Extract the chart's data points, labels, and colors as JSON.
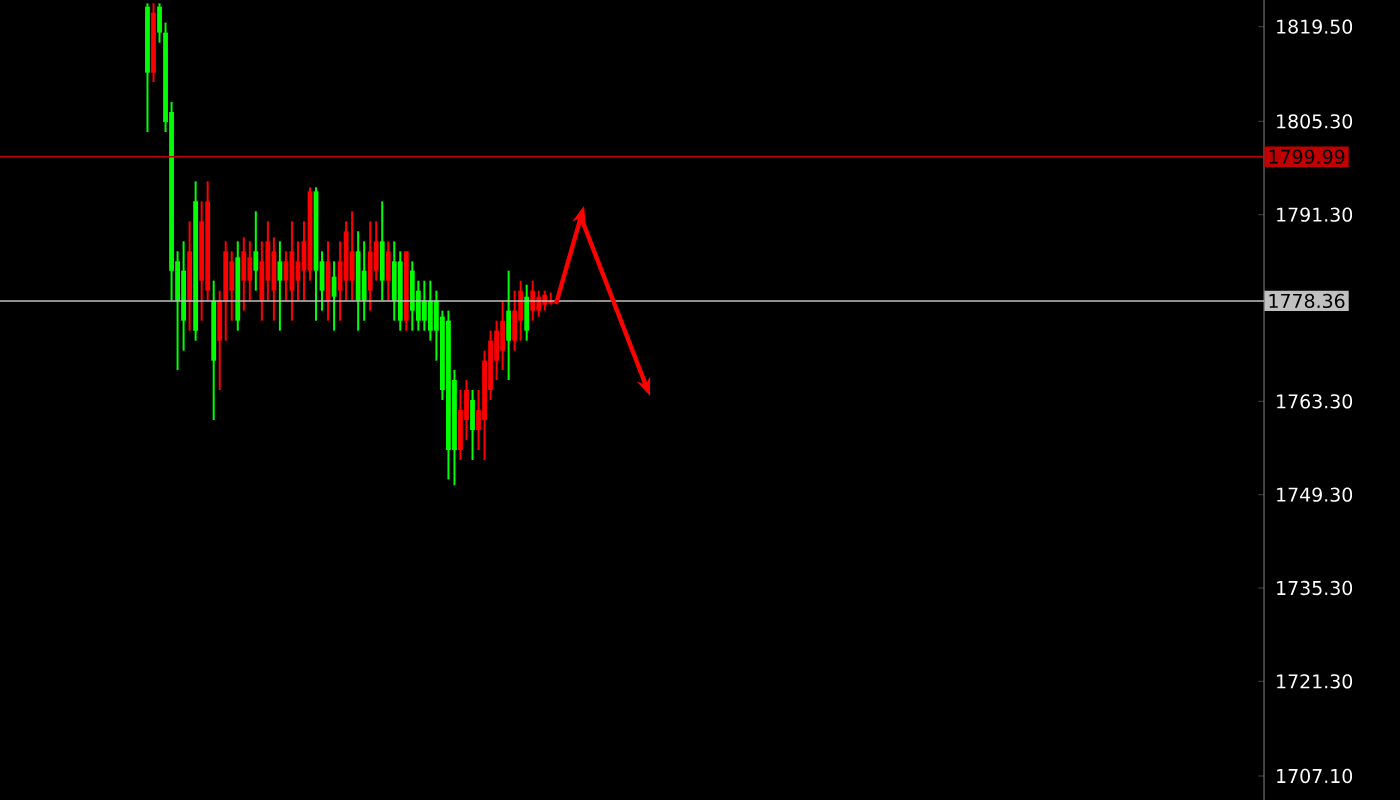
{
  "chart_data": {
    "type": "candlestick",
    "categories": [
      null,
      null,
      null,
      null,
      null,
      null,
      null,
      null,
      null,
      null,
      null,
      null,
      null,
      null,
      null,
      null,
      null,
      null,
      null,
      null,
      null,
      null,
      null,
      null,
      null,
      null,
      null,
      null,
      null,
      null,
      null,
      null,
      null,
      null,
      null,
      null,
      null,
      null,
      null,
      null,
      null,
      null,
      null,
      null,
      null,
      null,
      null,
      null,
      null,
      null,
      null,
      null,
      null,
      null,
      null,
      null,
      null,
      null,
      null,
      null,
      null,
      null,
      null,
      null,
      null,
      null,
      null,
      null,
      null,
      null,
      null,
      null,
      null,
      null,
      null,
      null,
      null,
      null,
      null,
      null,
      null,
      null,
      null,
      null,
      null,
      null,
      null,
      null,
      null,
      null,
      null,
      null,
      null,
      null,
      null,
      null,
      null,
      null,
      null,
      null,
      null,
      null,
      null,
      null,
      null,
      null,
      null,
      null,
      null,
      null,
      null,
      null,
      null,
      null,
      null,
      null,
      null,
      null,
      null,
      null,
      null,
      null,
      null,
      null,
      null,
      null,
      null,
      null,
      null,
      null,
      null,
      null,
      null,
      null,
      null,
      null,
      null,
      null,
      null,
      null,
      null,
      null,
      null,
      null,
      null,
      null,
      null,
      null,
      null,
      null,
      null,
      null,
      null,
      null,
      null,
      null,
      null,
      null,
      null,
      null,
      null,
      null,
      null,
      null,
      null,
      null,
      null,
      null,
      null,
      null,
      null,
      null,
      null,
      null,
      null,
      null,
      null,
      null,
      null,
      null,
      null,
      null,
      null,
      null,
      null,
      null,
      null,
      null,
      null,
      null,
      null,
      null,
      null,
      null,
      null,
      null,
      null,
      null,
      null,
      null,
      null,
      null,
      null,
      null,
      null,
      null,
      null,
      null,
      null,
      null
    ],
    "ohlc": [
      null,
      null,
      null,
      null,
      null,
      null,
      null,
      null,
      null,
      null,
      null,
      null,
      null,
      null,
      null,
      null,
      null,
      null,
      null,
      null,
      null,
      null,
      null,
      null,
      [
        1822.5,
        1823.0,
        1803.7,
        1812.6
      ],
      [
        1812.6,
        1823.0,
        1811.2,
        1821.6
      ],
      [
        1822.5,
        1823.0,
        1817.1,
        1818.6
      ],
      [
        1818.6,
        1820.1,
        1803.7,
        1805.2
      ],
      [
        1806.7,
        1808.2,
        1778.4,
        1782.9
      ],
      [
        1784.3,
        1785.8,
        1768.0,
        1778.4
      ],
      [
        1782.9,
        1787.3,
        1770.9,
        1775.4
      ],
      [
        1778.4,
        1790.3,
        1773.9,
        1785.8
      ],
      [
        1793.3,
        1796.3,
        1772.4,
        1773.9
      ],
      [
        1781.4,
        1793.3,
        1775.4,
        1790.3
      ],
      [
        1779.9,
        1796.3,
        1778.4,
        1793.3
      ],
      [
        1778.4,
        1781.4,
        1760.5,
        1769.4
      ],
      [
        1772.4,
        1779.9,
        1765.0,
        1778.4
      ],
      [
        1778.4,
        1787.3,
        1772.4,
        1785.8
      ],
      [
        1779.9,
        1785.8,
        1775.4,
        1784.3
      ],
      [
        1784.9,
        1787.3,
        1773.9,
        1775.4
      ],
      [
        1781.4,
        1787.9,
        1776.9,
        1785.8
      ],
      [
        1781.4,
        1787.3,
        1778.4,
        1784.9
      ],
      [
        1785.8,
        1791.8,
        1779.9,
        1782.9
      ],
      [
        1778.4,
        1787.3,
        1775.4,
        1784.3
      ],
      [
        1781.4,
        1790.3,
        1778.4,
        1787.3
      ],
      [
        1779.9,
        1787.9,
        1775.4,
        1785.8
      ],
      [
        1784.3,
        1787.3,
        1773.9,
        1781.4
      ],
      [
        1781.4,
        1785.8,
        1778.4,
        1784.3
      ],
      [
        1779.9,
        1790.3,
        1775.4,
        1785.8
      ],
      [
        1781.4,
        1787.3,
        1778.4,
        1784.3
      ],
      [
        1782.9,
        1790.3,
        1778.4,
        1787.3
      ],
      [
        1782.9,
        1795.4,
        1781.4,
        1794.8
      ],
      [
        1794.8,
        1795.4,
        1775.4,
        1782.9
      ],
      [
        1784.3,
        1785.8,
        1776.9,
        1779.9
      ],
      [
        1778.4,
        1787.3,
        1775.4,
        1784.3
      ],
      [
        1782.0,
        1784.3,
        1773.9,
        1779.0
      ],
      [
        1779.9,
        1787.3,
        1775.4,
        1784.3
      ],
      [
        1781.4,
        1790.3,
        1778.4,
        1788.8
      ],
      [
        1781.4,
        1791.8,
        1778.4,
        1785.8
      ],
      [
        1785.8,
        1788.8,
        1773.9,
        1778.4
      ],
      [
        1782.9,
        1787.3,
        1775.4,
        1778.4
      ],
      [
        1779.9,
        1790.3,
        1776.9,
        1785.8
      ],
      [
        1782.9,
        1790.3,
        1781.4,
        1787.3
      ],
      [
        1787.3,
        1793.3,
        1778.4,
        1781.4
      ],
      [
        1781.4,
        1787.3,
        1778.4,
        1785.8
      ],
      [
        1784.3,
        1787.3,
        1775.4,
        1778.4
      ],
      [
        1784.3,
        1785.8,
        1773.9,
        1775.4
      ],
      [
        1775.4,
        1785.8,
        1773.9,
        1785.8
      ],
      [
        1782.9,
        1784.3,
        1773.9,
        1776.9
      ],
      [
        1779.9,
        1781.4,
        1773.9,
        1775.4
      ],
      [
        1778.4,
        1781.4,
        1773.9,
        1775.4
      ],
      [
        1778.4,
        1781.4,
        1772.4,
        1773.9
      ],
      [
        1778.4,
        1779.9,
        1769.4,
        1773.9
      ],
      [
        1776.0,
        1776.9,
        1763.5,
        1765.0
      ],
      [
        1775.4,
        1776.9,
        1751.6,
        1756.0
      ],
      [
        1766.5,
        1768.0,
        1750.7,
        1756.0
      ],
      [
        1756.0,
        1765.0,
        1754.5,
        1762.0
      ],
      [
        1760.5,
        1766.5,
        1757.5,
        1765.0
      ],
      [
        1763.5,
        1765.0,
        1754.5,
        1759.0
      ],
      [
        1759.0,
        1765.0,
        1756.0,
        1762.0
      ],
      [
        1760.5,
        1770.9,
        1754.5,
        1769.4
      ],
      [
        1765.0,
        1773.9,
        1763.5,
        1772.4
      ],
      [
        1769.4,
        1775.4,
        1766.5,
        1773.9
      ],
      [
        1770.9,
        1778.4,
        1768.0,
        1775.4
      ],
      [
        1776.9,
        1782.9,
        1766.5,
        1772.4
      ],
      [
        1772.4,
        1779.9,
        1770.9,
        1776.9
      ],
      [
        1775.4,
        1781.4,
        1772.4,
        1779.9
      ],
      [
        1779.0,
        1780.8,
        1772.4,
        1773.9
      ],
      [
        1776.9,
        1781.4,
        1775.4,
        1779.9
      ],
      [
        1776.9,
        1779.9,
        1776.0,
        1779.0
      ],
      [
        1777.8,
        1779.9,
        1776.9,
        1779.3
      ],
      [
        1778.0,
        1779.6,
        1777.8,
        1778.4
      ],
      null,
      null,
      null,
      null,
      null,
      null,
      null,
      null,
      null,
      null,
      null,
      null,
      null,
      null,
      null,
      null,
      null,
      null,
      null,
      null,
      null,
      null,
      null,
      null,
      null,
      null,
      null,
      null,
      null,
      null,
      null,
      null,
      null,
      null,
      null,
      null,
      null,
      null,
      null,
      null,
      null,
      null,
      null,
      null,
      null,
      null,
      null,
      null,
      null,
      null,
      null,
      null,
      null,
      null,
      null,
      null,
      null,
      null,
      null,
      null,
      null,
      null,
      null,
      null,
      null,
      null,
      null,
      null,
      null,
      null,
      null,
      null,
      null,
      null,
      null,
      null,
      null,
      null,
      null,
      null,
      null,
      null,
      null,
      null,
      null,
      null,
      null,
      null,
      null,
      null,
      null,
      null,
      null,
      null,
      null,
      null,
      null,
      null,
      null,
      null,
      null,
      null,
      null,
      null,
      null,
      null,
      null,
      null,
      null,
      null,
      null,
      null,
      null,
      null,
      null,
      null,
      null,
      null
    ],
    "colors": [
      null,
      null,
      null,
      null,
      null,
      null,
      null,
      null,
      null,
      null,
      null,
      null,
      null,
      null,
      null,
      null,
      null,
      null,
      null,
      null,
      null,
      null,
      null,
      null,
      "#00ff00",
      "#ff0000",
      "#00ff00",
      "#00ff00",
      "#00ff00",
      "#00ff00",
      "#00ff00",
      "#ff0000",
      "#00ff00",
      "#ff0000",
      "#ff0000",
      "#00ff00",
      "#ff0000",
      "#ff0000",
      "#ff0000",
      "#00ff00",
      "#ff0000",
      "#ff0000",
      "#00ff00",
      "#ff0000",
      "#ff0000",
      "#ff0000",
      "#00ff00",
      "#ff0000",
      "#ff0000",
      "#ff0000",
      "#ff0000",
      "#ff0000",
      "#00ff00",
      "#00ff00",
      "#ff0000",
      "#00ff00",
      "#ff0000",
      "#ff0000",
      "#ff0000",
      "#00ff00",
      "#00ff00",
      "#ff0000",
      "#ff0000",
      "#00ff00",
      "#ff0000",
      "#00ff00",
      "#00ff00",
      "#ff0000",
      "#00ff00",
      "#00ff00",
      "#00ff00",
      "#00ff00",
      "#00ff00",
      "#00ff00",
      "#00ff00",
      "#00ff00",
      "#ff0000",
      "#ff0000",
      "#00ff00",
      "#ff0000",
      "#ff0000",
      "#ff0000",
      "#ff0000",
      "#ff0000",
      "#00ff00",
      "#ff0000",
      "#ff0000",
      "#00ff00",
      "#ff0000",
      "#ff0000",
      "#ff0000",
      "#ff0000",
      null,
      null,
      null,
      null,
      null,
      null,
      null,
      null,
      null,
      null,
      null,
      null,
      null,
      null,
      null,
      null,
      null,
      null,
      null,
      null,
      null,
      null,
      null,
      null,
      null,
      null,
      null,
      null,
      null,
      null,
      null,
      null,
      null,
      null,
      null,
      null,
      null,
      null,
      null,
      null,
      null,
      null,
      null,
      null,
      null,
      null,
      null,
      null,
      null,
      null,
      null,
      null,
      null,
      null,
      null,
      null,
      null,
      null,
      null,
      null,
      null,
      null,
      null,
      null,
      null,
      null,
      null,
      null,
      null,
      null,
      null,
      null,
      null,
      null,
      null,
      null,
      null,
      null,
      null,
      null,
      null,
      null,
      null,
      null,
      null,
      null,
      null,
      null,
      null,
      null,
      null,
      null,
      null,
      null,
      null,
      null,
      null,
      null,
      null,
      null,
      null,
      null,
      null,
      null,
      null,
      null,
      null,
      null,
      null,
      null,
      null,
      null,
      null,
      null,
      null,
      null,
      null,
      null
    ],
    "ylim": [
      1703.5,
      1823.5
    ],
    "yticks": [
      {
        "value": 1707.1,
        "label": "1707.10"
      },
      {
        "value": 1721.3,
        "label": "1721.30"
      },
      {
        "value": 1735.3,
        "label": "1735.30"
      },
      {
        "value": 1749.3,
        "label": "1749.30"
      },
      {
        "value": 1763.3,
        "label": "1763.30"
      },
      {
        "value": 1791.3,
        "label": "1791.30"
      },
      {
        "value": 1805.3,
        "label": "1805.30"
      },
      {
        "value": 1819.5,
        "label": "1819.50"
      }
    ],
    "ref_lines": [
      {
        "axis": "y",
        "value": 1799.99,
        "label": "1799.99",
        "color": "#c00000"
      },
      {
        "axis": "y",
        "value": 1778.36,
        "label": "1778.36",
        "color": "#c0c0c0"
      }
    ],
    "tick_labels": "y"
  }
}
